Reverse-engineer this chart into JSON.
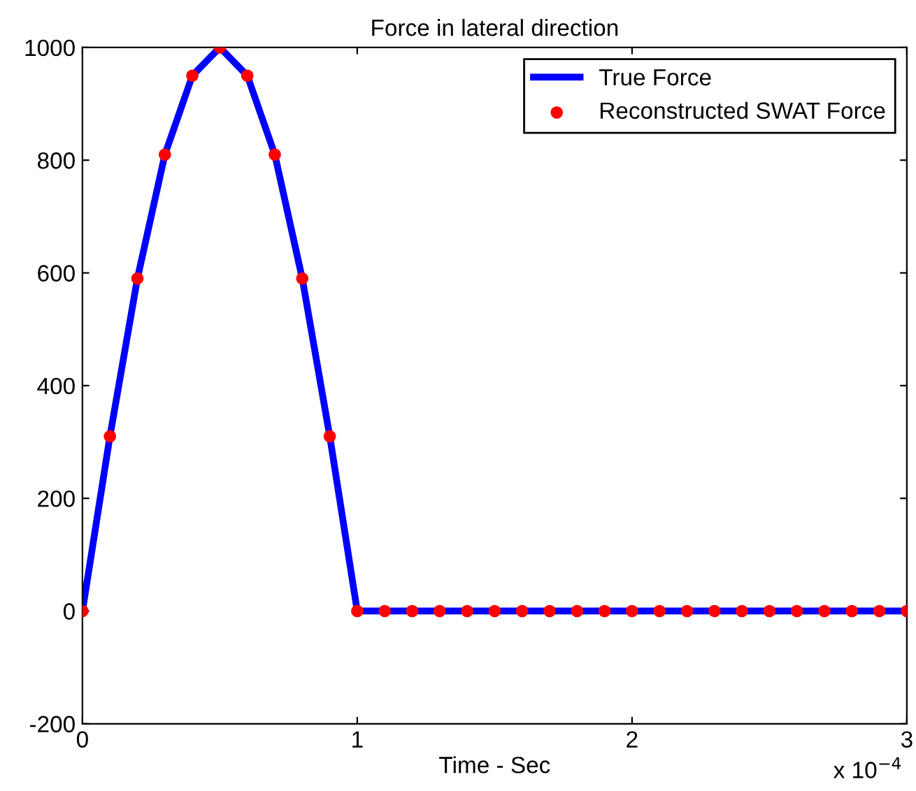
{
  "chart_data": {
    "type": "line",
    "title": "Force in lateral direction",
    "xlabel": "Time - Sec",
    "x": [
      0,
      0.1,
      0.2,
      0.3,
      0.4,
      0.5,
      0.6,
      0.7,
      0.8,
      0.9,
      1.0,
      1.1,
      1.2,
      1.3,
      1.4,
      1.5,
      1.6,
      1.7,
      1.8,
      1.9,
      2.0,
      2.1,
      2.2,
      2.3,
      2.4,
      2.5,
      2.6,
      2.7,
      2.8,
      2.9,
      3.0
    ],
    "series": [
      {
        "name": "True Force",
        "color": "#0000ff",
        "marker": "none",
        "line_style": "solid",
        "values": [
          0,
          310,
          590,
          810,
          950,
          1000,
          950,
          810,
          590,
          310,
          0,
          0,
          0,
          0,
          0,
          0,
          0,
          0,
          0,
          0,
          0,
          0,
          0,
          0,
          0,
          0,
          0,
          0,
          0,
          0,
          0
        ]
      },
      {
        "name": "Reconstructed SWAT Force",
        "type": "scatter",
        "color": "#ff0000",
        "marker": "circle",
        "values": [
          0,
          310,
          590,
          810,
          950,
          1000,
          950,
          810,
          590,
          310,
          0,
          0,
          0,
          0,
          0,
          0,
          0,
          0,
          0,
          0,
          0,
          0,
          0,
          0,
          0,
          0,
          0,
          0,
          0,
          0,
          0
        ]
      }
    ],
    "xlim": [
      0,
      3
    ],
    "xticks": [
      0,
      1,
      2,
      3
    ],
    "ylim": [
      -200,
      1000
    ],
    "yticks": [
      -200,
      0,
      200,
      400,
      600,
      800,
      1000
    ],
    "annotations": [
      "x 10$^{−4}$"
    ],
    "grid": false,
    "legend": "top right"
  }
}
